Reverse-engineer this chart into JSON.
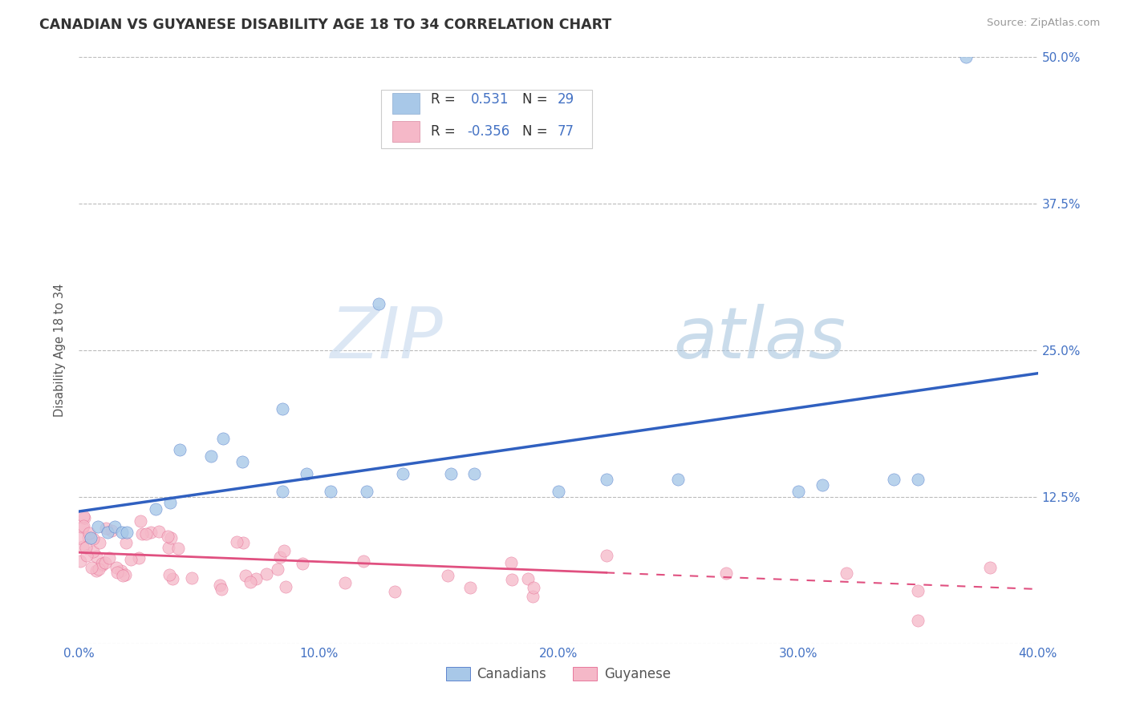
{
  "title": "CANADIAN VS GUYANESE DISABILITY AGE 18 TO 34 CORRELATION CHART",
  "source_text": "Source: ZipAtlas.com",
  "ylabel": "Disability Age 18 to 34",
  "xlim": [
    0.0,
    0.4
  ],
  "ylim": [
    0.0,
    0.5
  ],
  "xticks": [
    0.0,
    0.1,
    0.2,
    0.3,
    0.4
  ],
  "yticks": [
    0.0,
    0.125,
    0.25,
    0.375,
    0.5
  ],
  "canadian_color": "#a8c8e8",
  "guyanese_color": "#f5b8c8",
  "canadian_line_color": "#3060c0",
  "guyanese_line_color": "#e05080",
  "r_canadian": "0.531",
  "n_canadian": "29",
  "r_guyanese": "-0.356",
  "n_guyanese": "77",
  "legend_label_canadian": "Canadians",
  "legend_label_guyanese": "Guyanese",
  "watermark_zip": "ZIP",
  "watermark_atlas": "atlas",
  "background_color": "#ffffff",
  "grid_color": "#bbbbbb",
  "title_color": "#333333",
  "axis_color": "#4472c4",
  "text_color": "#333333"
}
